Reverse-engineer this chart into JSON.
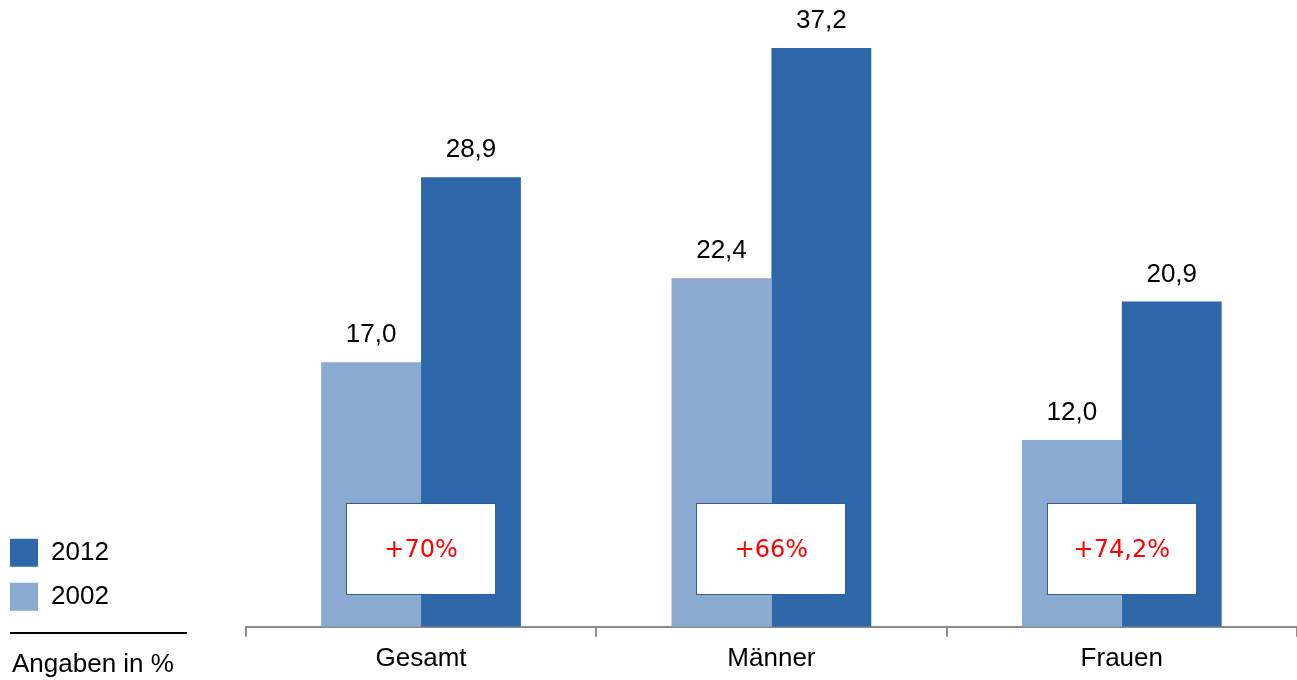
{
  "chart_data": {
    "type": "bar",
    "categories": [
      "Gesamt",
      "Männer",
      "Frauen"
    ],
    "series": [
      {
        "name": "2002",
        "color": "#8aaad2",
        "values": [
          17.0,
          22.4,
          12.0
        ],
        "value_labels": [
          "17,0",
          "22,4",
          "12,0"
        ]
      },
      {
        "name": "2012",
        "color": "#2e67a8",
        "values": [
          28.9,
          37.2,
          20.9
        ],
        "value_labels": [
          "28,9",
          "37,2",
          "20,9"
        ]
      }
    ],
    "legend": "bottom left",
    "tick_labels": "x",
    "annotations": [
      {
        "text": "+70%",
        "x": "Gesamt",
        "y": 5
      },
      {
        "text": "+66%",
        "x": "Männer",
        "y": 5
      },
      {
        "text": "+74,2%",
        "x": "Frauen",
        "y": 5
      },
      "Angaben in %"
    ]
  }
}
